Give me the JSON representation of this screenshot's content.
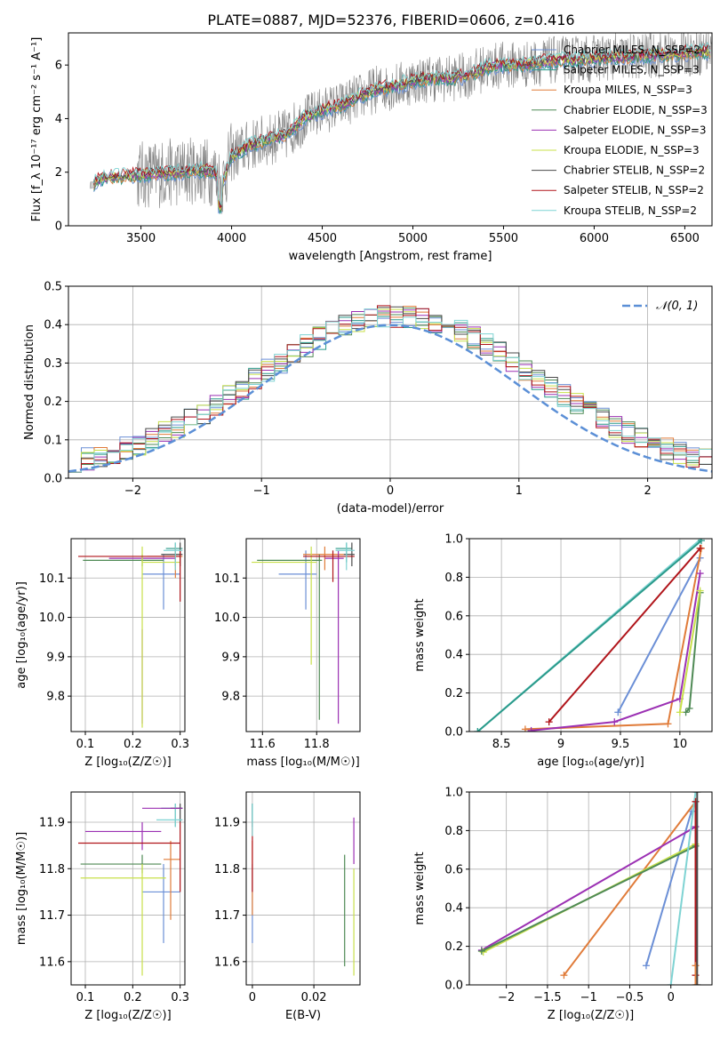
{
  "figure_title": "PLATE=0887, MJD=52376, FIBERID=0606, z=0.416",
  "colors": {
    "observed": "#808080",
    "chab_miles": "#6b8fd6",
    "salp_miles": "#2a9a8a",
    "krou_miles": "#e07b39",
    "chab_elodie": "#4f8a55",
    "salp_elodie": "#9b30b3",
    "krou_elodie": "#c8e04a",
    "chab_stelib": "#4a4a4a",
    "salp_stelib": "#b0141a",
    "krou_stelib": "#7fd3d3",
    "gaussian": "#5b8fd6"
  },
  "chart_data": [
    {
      "id": "spectrum",
      "type": "line",
      "xlabel": "wavelength [Angstrom, rest frame]",
      "ylabel": "Flux [f_λ 10⁻¹⁷ erg cm⁻² s⁻¹ A⁻¹]",
      "xlim": [
        3100,
        6650
      ],
      "ylim": [
        0,
        7.2
      ],
      "xticks": [
        3500,
        4000,
        4500,
        5000,
        5500,
        6000,
        6500
      ],
      "yticks": [
        0,
        2,
        4,
        6
      ],
      "observed_range": [
        3220,
        6650
      ],
      "legend_placement": "top-right",
      "model_continuum": {
        "x": [
          3220,
          3260,
          3300,
          3400,
          3500,
          3600,
          3700,
          3800,
          3900,
          3950,
          4000,
          4100,
          4200,
          4300,
          4400,
          4500,
          4600,
          4700,
          4800,
          4900,
          5000,
          5100,
          5200,
          5300,
          5400,
          5500,
          5600,
          5700,
          5800,
          5900,
          6000,
          6100,
          6200,
          6300,
          6400,
          6500,
          6600
        ],
        "y": [
          1.5,
          1.7,
          1.8,
          1.85,
          1.9,
          1.95,
          2.0,
          2.1,
          2.0,
          1.6,
          2.6,
          3.0,
          3.2,
          3.4,
          4.0,
          4.3,
          4.5,
          4.8,
          5.1,
          5.2,
          5.4,
          5.5,
          5.5,
          5.6,
          5.9,
          6.0,
          6.0,
          6.1,
          6.2,
          6.2,
          6.25,
          6.3,
          6.3,
          6.35,
          6.4,
          6.45,
          6.5
        ]
      },
      "series": [
        {
          "name": "Chabrier MILES, N_SSP=2",
          "color_key": "chab_miles"
        },
        {
          "name": "Salpeter MILES, N_SSP=3",
          "color_key": "salp_miles"
        },
        {
          "name": "Kroupa MILES, N_SSP=3",
          "color_key": "krou_miles"
        },
        {
          "name": "Chabrier ELODIE, N_SSP=3",
          "color_key": "chab_elodie"
        },
        {
          "name": "Salpeter ELODIE, N_SSP=3",
          "color_key": "salp_elodie"
        },
        {
          "name": "Kroupa ELODIE, N_SSP=3",
          "color_key": "krou_elodie"
        },
        {
          "name": "Chabrier STELIB, N_SSP=2",
          "color_key": "chab_stelib"
        },
        {
          "name": "Salpeter STELIB, N_SSP=2",
          "color_key": "salp_stelib"
        },
        {
          "name": "Kroupa STELIB, N_SSP=2",
          "color_key": "krou_stelib"
        }
      ]
    },
    {
      "id": "residuals",
      "type": "line",
      "xlabel": "(data-model)/error",
      "ylabel": "Normed distribution",
      "xlim": [
        -2.5,
        2.5
      ],
      "ylim": [
        0,
        0.5
      ],
      "xticks": [
        -2,
        -1,
        0,
        1,
        2
      ],
      "yticks": [
        0.0,
        0.1,
        0.2,
        0.3,
        0.4,
        0.5
      ],
      "legend": "𝒩(0, 1)",
      "legend_placement": "top-right",
      "bins": 50,
      "grid": true
    },
    {
      "id": "age_vs_Z",
      "type": "scatter",
      "xlabel": "Z [log₁₀(Z/Z☉)]",
      "ylabel": "age  [log₁₀(age/yr)]",
      "xlim": [
        0.07,
        0.31
      ],
      "ylim": [
        9.71,
        10.2
      ],
      "xticks": [
        0.1,
        0.2,
        0.3
      ],
      "yticks": [
        9.8,
        9.9,
        10.0,
        10.1
      ],
      "grid": true,
      "points": [
        {
          "c": "chab_miles",
          "x": 0.265,
          "y": 10.11,
          "xl": 0.22,
          "xh": 0.3,
          "yl": 10.02,
          "yh": 10.16
        },
        {
          "c": "salp_miles",
          "x": 0.29,
          "y": 10.175,
          "xl": 0.27,
          "xh": 0.305,
          "yl": 10.13,
          "yh": 10.19
        },
        {
          "c": "krou_miles",
          "x": 0.29,
          "y": 10.155,
          "xl": 0.23,
          "xh": 0.305,
          "yl": 10.1,
          "yh": 10.18
        },
        {
          "c": "chab_elodie",
          "x": 0.22,
          "y": 10.145,
          "xl": 0.095,
          "xh": 0.265,
          "yl": 10.13,
          "yh": 10.16
        },
        {
          "c": "salp_elodie",
          "x": 0.22,
          "y": 10.15,
          "xl": 0.15,
          "xh": 0.29,
          "yl": 9.73,
          "yh": 9.97
        },
        {
          "c": "krou_elodie",
          "x": 0.22,
          "y": 10.14,
          "xl": 0.22,
          "xh": 0.3,
          "yl": 9.72,
          "yh": 10.18
        },
        {
          "c": "chab_stelib",
          "x": 0.3,
          "y": 10.16,
          "xl": 0.26,
          "xh": 0.305,
          "yl": 10.13,
          "yh": 10.19
        },
        {
          "c": "salp_stelib",
          "x": 0.3,
          "y": 10.155,
          "xl": 0.085,
          "xh": 0.3,
          "yl": 10.04,
          "yh": 10.17
        },
        {
          "c": "krou_stelib",
          "x": 0.29,
          "y": 10.17,
          "xl": 0.265,
          "xh": 0.305,
          "yl": 10.12,
          "yh": 10.19
        }
      ]
    },
    {
      "id": "age_vs_mass",
      "type": "scatter",
      "xlabel": "mass [log₁₀(M/M☉)]",
      "ylabel": "",
      "xlim": [
        11.54,
        11.96
      ],
      "ylim": [
        9.71,
        10.2
      ],
      "xticks": [
        11.6,
        11.8
      ],
      "yticks": [
        9.8,
        9.9,
        10.0,
        10.1
      ],
      "grid": true,
      "points": [
        {
          "c": "chab_miles",
          "x": 11.76,
          "y": 10.11,
          "xl": 11.66,
          "xh": 11.8,
          "yl": 10.02,
          "yh": 10.17
        },
        {
          "c": "salp_miles",
          "x": 11.91,
          "y": 10.175,
          "xl": 11.87,
          "xh": 11.93,
          "yl": 10.14,
          "yh": 10.19
        },
        {
          "c": "krou_miles",
          "x": 11.83,
          "y": 10.16,
          "xl": 11.75,
          "xh": 11.9,
          "yl": 10.12,
          "yh": 10.18
        },
        {
          "c": "chab_elodie",
          "x": 11.81,
          "y": 10.145,
          "xl": 11.58,
          "xh": 11.82,
          "yl": 9.74,
          "yh": 10.16
        },
        {
          "c": "salp_elodie",
          "x": 11.88,
          "y": 10.15,
          "xl": 11.83,
          "xh": 11.9,
          "yl": 9.73,
          "yh": 10.17
        },
        {
          "c": "krou_elodie",
          "x": 11.78,
          "y": 10.14,
          "xl": 11.56,
          "xh": 11.8,
          "yl": 9.88,
          "yh": 10.18
        },
        {
          "c": "chab_stelib",
          "x": 11.93,
          "y": 10.16,
          "xl": 11.9,
          "xh": 11.94,
          "yl": 10.13,
          "yh": 10.19
        },
        {
          "c": "salp_stelib",
          "x": 11.86,
          "y": 10.155,
          "xl": 11.75,
          "xh": 11.94,
          "yl": 10.09,
          "yh": 10.17
        },
        {
          "c": "krou_stelib",
          "x": 11.91,
          "y": 10.17,
          "xl": 11.87,
          "xh": 11.94,
          "yl": 10.12,
          "yh": 10.19
        }
      ]
    },
    {
      "id": "massweight_vs_age",
      "type": "line",
      "xlabel": "age  [log₁₀(age/yr)]",
      "ylabel": "mass weight",
      "xlim": [
        8.23,
        10.27
      ],
      "ylim": [
        0,
        1
      ],
      "xticks": [
        8.5,
        9.0,
        9.5,
        10.0
      ],
      "yticks": [
        0.0,
        0.2,
        0.4,
        0.6,
        0.8,
        1.0
      ],
      "grid": true,
      "series": [
        {
          "c": "chab_miles",
          "x": [
            9.48,
            10.17
          ],
          "y": [
            0.1,
            0.9
          ]
        },
        {
          "c": "krou_miles",
          "x": [
            8.7,
            9.9,
            10.18
          ],
          "y": [
            0.012,
            0.04,
            0.95
          ]
        },
        {
          "c": "chab_elodie",
          "x": [
            10.05,
            10.08,
            10.17
          ],
          "y": [
            0.1,
            0.12,
            0.72
          ]
        },
        {
          "c": "salp_elodie",
          "x": [
            8.75,
            9.45,
            10.0,
            10.17
          ],
          "y": [
            0.005,
            0.05,
            0.17,
            0.82
          ]
        },
        {
          "c": "krou_elodie",
          "x": [
            10.0,
            10.17
          ],
          "y": [
            0.1,
            0.73
          ]
        },
        {
          "c": "salp_stelib",
          "x": [
            8.9,
            10.17
          ],
          "y": [
            0.05,
            0.95
          ]
        },
        {
          "c": "krou_stelib",
          "x": [
            8.3,
            10.18
          ],
          "y": [
            0.0,
            1.0
          ]
        },
        {
          "c": "salp_miles",
          "x": [
            8.3,
            10.18
          ],
          "y": [
            0.0,
            0.99
          ]
        }
      ]
    },
    {
      "id": "mass_vs_Z",
      "type": "scatter",
      "xlabel": "Z [log₁₀(Z/Z☉)]",
      "ylabel": "mass [log₁₀(M/M☉)]",
      "xlim": [
        0.07,
        0.31
      ],
      "ylim": [
        11.55,
        11.965
      ],
      "xticks": [
        0.1,
        0.2,
        0.3
      ],
      "yticks": [
        11.6,
        11.7,
        11.8,
        11.9
      ],
      "grid": true,
      "points": [
        {
          "c": "chab_miles",
          "x": 0.265,
          "y": 11.75,
          "xl": 0.22,
          "xh": 0.3,
          "yl": 11.64,
          "yh": 11.81
        },
        {
          "c": "salp_miles",
          "x": 0.29,
          "y": 11.93,
          "xl": 0.26,
          "xh": 0.305,
          "yl": 11.89,
          "yh": 11.94
        },
        {
          "c": "krou_miles",
          "x": 0.28,
          "y": 11.82,
          "xl": 0.265,
          "xh": 0.3,
          "yl": 11.69,
          "yh": 11.86
        },
        {
          "c": "chab_elodie",
          "x": 0.22,
          "y": 11.81,
          "xl": 0.09,
          "xh": 0.26,
          "yl": 11.79,
          "yh": 11.83
        },
        {
          "c": "salp_elodie",
          "x": 0.22,
          "y": 11.88,
          "xl": 0.1,
          "xh": 0.26,
          "yl": 11.84,
          "yh": 11.9
        },
        {
          "c": "krou_elodie",
          "x": 0.22,
          "y": 11.78,
          "xl": 0.09,
          "xh": 0.27,
          "yl": 11.57,
          "yh": 11.81
        },
        {
          "c": "chab_stelib",
          "x": 0.3,
          "y": 11.93,
          "xl": 0.28,
          "xh": 0.305,
          "yl": 11.9,
          "yh": 11.94
        },
        {
          "c": "salp_stelib",
          "x": 0.3,
          "y": 11.855,
          "xl": 0.085,
          "xh": 0.3,
          "yl": 11.75,
          "yh": 11.9
        },
        {
          "c": "krou_stelib",
          "x": 0.29,
          "y": 11.905,
          "xl": 0.25,
          "xh": 0.305,
          "yl": 11.89,
          "yh": 11.94
        },
        {
          "c": "salp_elodie",
          "x": 0.275,
          "y": 11.93,
          "xl": 0.22,
          "xh": 0.305,
          "yl": 11.93,
          "yh": 11.93
        }
      ]
    },
    {
      "id": "mass_vs_ebv",
      "type": "scatter",
      "xlabel": "E(B-V)",
      "ylabel": "",
      "xlim": [
        -0.002,
        0.035
      ],
      "ylim": [
        11.55,
        11.965
      ],
      "xticks": [
        0.0,
        0.02
      ],
      "yticks": [
        11.6,
        11.7,
        11.8,
        11.9
      ],
      "grid": true,
      "points": [
        {
          "c": "chab_miles",
          "x": 0.0,
          "y": 11.75,
          "yl": 11.64,
          "yh": 11.81
        },
        {
          "c": "salp_miles",
          "x": 0.0,
          "y": 11.93,
          "yl": 11.89,
          "yh": 11.94
        },
        {
          "c": "krou_miles",
          "x": 0.0,
          "y": 11.82,
          "yl": 11.7,
          "yh": 11.86
        },
        {
          "c": "chab_elodie",
          "x": 0.03,
          "y": 11.81,
          "yl": 11.59,
          "yh": 11.83
        },
        {
          "c": "salp_elodie",
          "x": 0.033,
          "y": 11.88,
          "yl": 11.81,
          "yh": 11.91
        },
        {
          "c": "krou_elodie",
          "x": 0.033,
          "y": 11.78,
          "yl": 11.57,
          "yh": 11.8
        },
        {
          "c": "chab_stelib",
          "x": 0.0,
          "y": 11.93,
          "yl": 11.9,
          "yh": 11.94
        },
        {
          "c": "salp_stelib",
          "x": 0.0,
          "y": 11.855,
          "yl": 11.75,
          "yh": 11.9
        },
        {
          "c": "krou_stelib",
          "x": 0.0,
          "y": 11.905,
          "yl": 11.87,
          "yh": 11.94
        }
      ]
    },
    {
      "id": "massweight_vs_Z",
      "type": "line",
      "xlabel": "Z [log₁₀(Z/Z☉)]",
      "ylabel": "mass weight",
      "xlim": [
        -2.45,
        0.5
      ],
      "ylim": [
        0,
        1
      ],
      "xticks": [
        -2.0,
        -1.5,
        -1.0,
        -0.5,
        0.0
      ],
      "yticks": [
        0.0,
        0.2,
        0.4,
        0.6,
        0.8,
        1.0
      ],
      "grid": true,
      "series": [
        {
          "c": "chab_miles",
          "x": [
            -0.3,
            0.25
          ],
          "y": [
            0.1,
            0.9
          ]
        },
        {
          "c": "krou_miles",
          "x": [
            -1.3,
            0.3
          ],
          "y": [
            0.05,
            0.95
          ]
        },
        {
          "c": "salp_elodie",
          "x": [
            -2.3,
            0.3
          ],
          "y": [
            0.18,
            0.82
          ]
        },
        {
          "c": "krou_elodie",
          "x": [
            -2.28,
            0.3
          ],
          "y": [
            0.17,
            0.73
          ]
        },
        {
          "c": "chab_elodie",
          "x": [
            -2.3,
            0.3
          ],
          "y": [
            0.175,
            0.72
          ]
        },
        {
          "c": "krou_stelib",
          "x": [
            0.0,
            0.3
          ],
          "y": [
            0.0,
            1.0
          ]
        },
        {
          "c": "salp_stelib",
          "x": [
            0.3,
            0.3
          ],
          "y": [
            0.05,
            0.95
          ]
        },
        {
          "c": "krou_miles",
          "x": [
            0.3,
            0.3
          ],
          "y": [
            0.0,
            0.1
          ]
        },
        {
          "c": "chab_stelib",
          "x": [
            0.32,
            0.32
          ],
          "y": [
            0.0,
            1.0
          ]
        }
      ]
    }
  ]
}
